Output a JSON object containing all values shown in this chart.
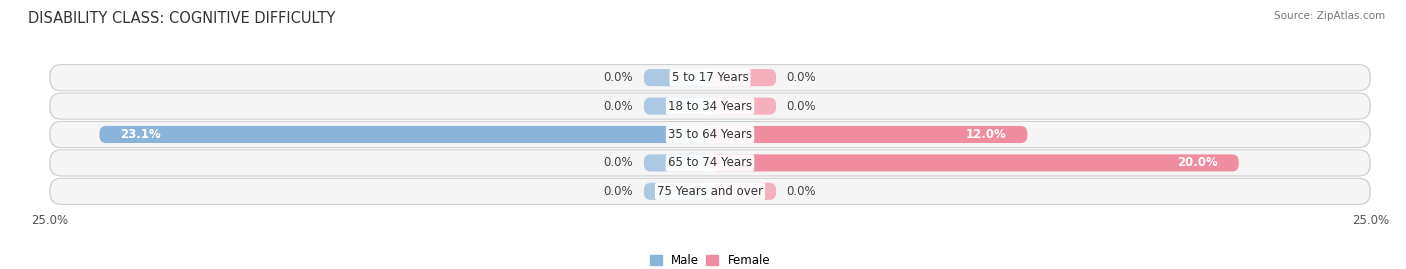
{
  "title": "DISABILITY CLASS: COGNITIVE DIFFICULTY",
  "source": "Source: ZipAtlas.com",
  "categories": [
    "5 to 17 Years",
    "18 to 34 Years",
    "35 to 64 Years",
    "65 to 74 Years",
    "75 Years and over"
  ],
  "male_values": [
    0.0,
    0.0,
    23.1,
    0.0,
    0.0
  ],
  "female_values": [
    0.0,
    0.0,
    12.0,
    20.0,
    0.0
  ],
  "male_color": "#8ab4d9",
  "female_color": "#f08ca0",
  "male_color_small": "#adc8e3",
  "female_color_small": "#f5b0be",
  "row_bg_color": "#e8e8e8",
  "row_inner_bg": "#f5f5f5",
  "xlim": 25.0,
  "legend_male": "Male",
  "legend_female": "Female",
  "title_fontsize": 10.5,
  "label_fontsize": 8.5,
  "tick_fontsize": 8.5,
  "background_color": "#ffffff",
  "small_bar_width": 2.5
}
